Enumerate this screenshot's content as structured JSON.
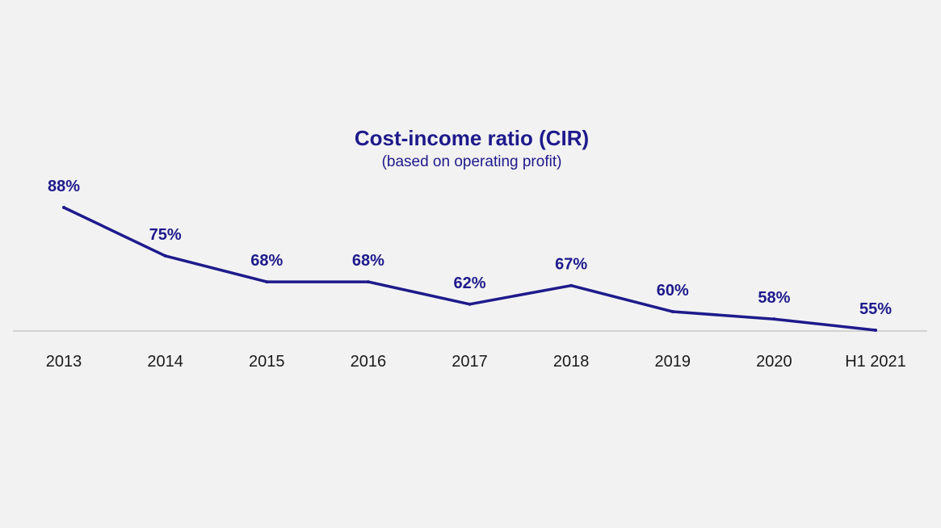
{
  "colors": {
    "accent": "#1e1a8c",
    "axis": "#c8c8c8",
    "tick_text": "#1a1a1a",
    "background": "#f2f2f2"
  },
  "chart_data": {
    "type": "line",
    "title": "Cost-income ratio (CIR)",
    "subtitle": "(based on operating profit)",
    "categories": [
      "2013",
      "2014",
      "2015",
      "2016",
      "2017",
      "2018",
      "2019",
      "2020",
      "H1 2021"
    ],
    "series": [
      {
        "values": [
          88,
          75,
          68,
          68,
          62,
          67,
          60,
          58,
          55
        ],
        "data_labels": [
          "88%",
          "75%",
          "68%",
          "68%",
          "62%",
          "67%",
          "60%",
          "58%",
          "55%"
        ]
      }
    ],
    "ylim": [
      55,
      88
    ],
    "grid": false,
    "legend": "none",
    "xlabel": "",
    "ylabel": ""
  }
}
